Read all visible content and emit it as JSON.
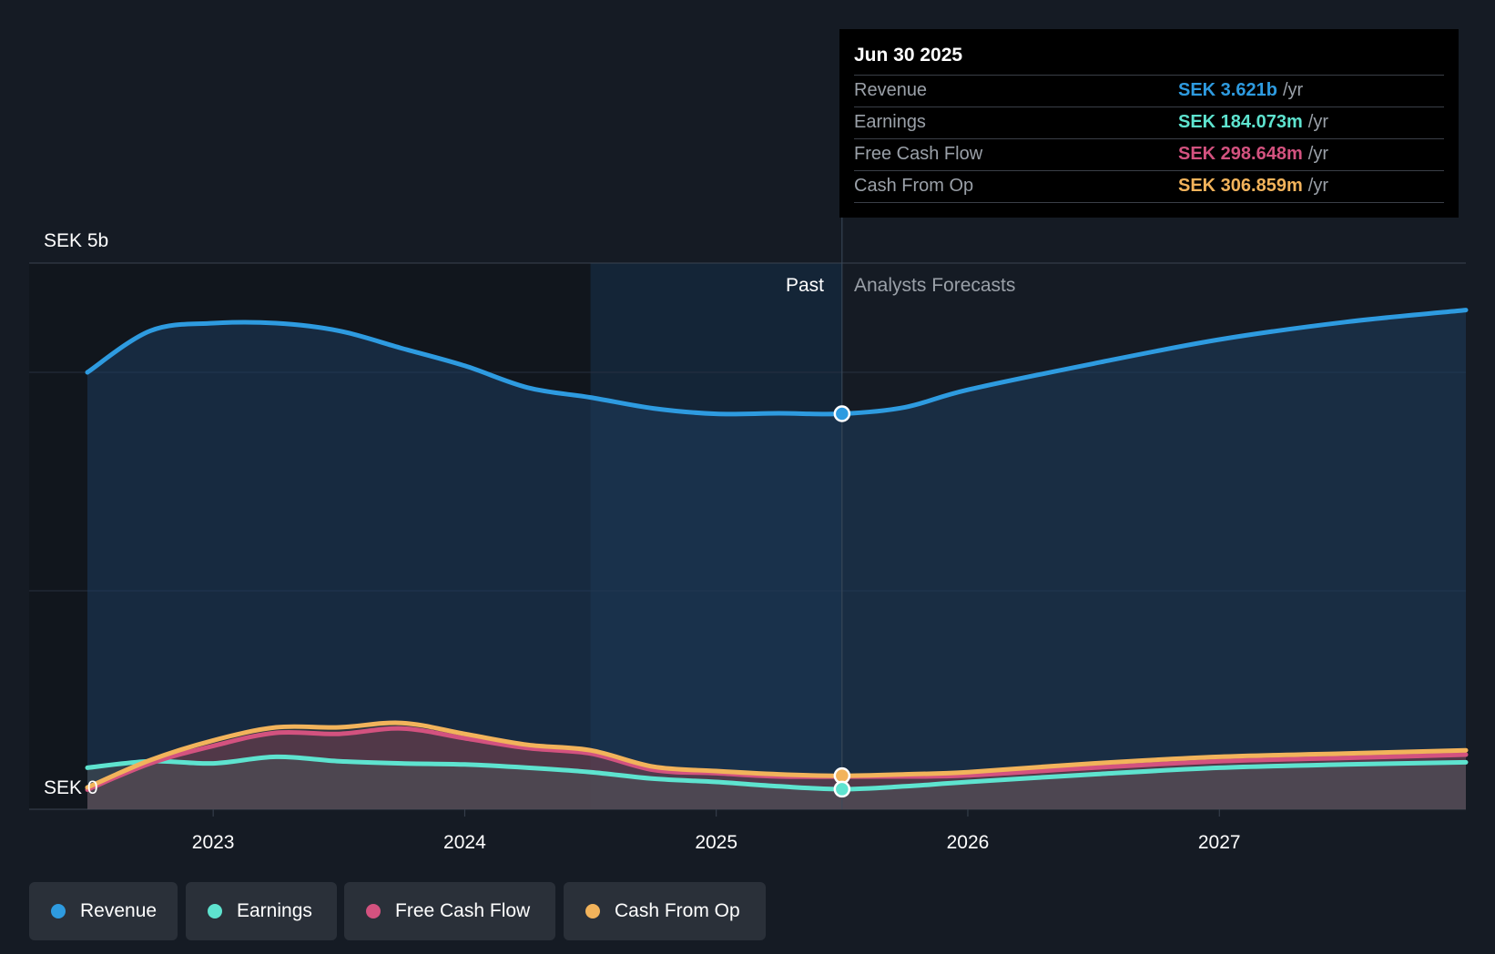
{
  "tooltip": {
    "date": "Jun 30 2025",
    "unit": "/yr",
    "rows": [
      {
        "label": "Revenue",
        "value": "SEK 3.621b"
      },
      {
        "label": "Earnings",
        "value": "SEK 184.073m"
      },
      {
        "label": "Free Cash Flow",
        "value": "SEK 298.648m"
      },
      {
        "label": "Cash From Op",
        "value": "SEK 306.859m"
      }
    ]
  },
  "legend": [
    "Revenue",
    "Earnings",
    "Free Cash Flow",
    "Cash From Op"
  ],
  "colors": {
    "revenue": "#2e9be0",
    "earnings": "#5ee3cf",
    "fcf": "#d3527f",
    "cfo": "#f2b35b",
    "background": "#151b24"
  },
  "chart_data": {
    "type": "area",
    "title": "",
    "ylabel_top": "SEK 5b",
    "ylabel_bottom": "SEK 0",
    "ylim": [
      0,
      5
    ],
    "unit": "SEK b",
    "xlim": [
      2022.5,
      2027.98
    ],
    "x_ticks": [
      2023,
      2024,
      2025,
      2026,
      2027
    ],
    "x_tick_labels": [
      "2023",
      "2024",
      "2025",
      "2026",
      "2027"
    ],
    "past_label": "Past",
    "forecast_label": "Analysts Forecasts",
    "divider_x": 2025.5,
    "shaded_start_x": 2024.5,
    "highlight_x": 2025.5,
    "series": [
      {
        "name": "Revenue",
        "key": "revenue",
        "x": [
          2022.5,
          2022.75,
          2023.0,
          2023.25,
          2023.5,
          2023.75,
          2024.0,
          2024.25,
          2024.5,
          2024.75,
          2025.0,
          2025.25,
          2025.5,
          2025.75,
          2026.0,
          2026.5,
          2027.0,
          2027.5,
          2027.98
        ],
        "values": [
          4.0,
          4.38,
          4.45,
          4.45,
          4.38,
          4.22,
          4.06,
          3.86,
          3.77,
          3.67,
          3.62,
          3.625,
          3.621,
          3.68,
          3.84,
          4.08,
          4.3,
          4.46,
          4.57
        ]
      },
      {
        "name": "Earnings",
        "key": "earnings",
        "x": [
          2022.5,
          2022.75,
          2023.0,
          2023.25,
          2023.5,
          2023.75,
          2024.0,
          2024.25,
          2024.5,
          2024.75,
          2025.0,
          2025.25,
          2025.5,
          2025.75,
          2026.0,
          2026.5,
          2027.0,
          2027.5,
          2027.98
        ],
        "values": [
          0.38,
          0.44,
          0.42,
          0.48,
          0.44,
          0.42,
          0.41,
          0.38,
          0.34,
          0.28,
          0.25,
          0.21,
          0.184,
          0.21,
          0.25,
          0.32,
          0.38,
          0.41,
          0.43
        ]
      },
      {
        "name": "Free Cash Flow",
        "key": "fcf",
        "x": [
          2022.5,
          2022.75,
          2023.0,
          2023.25,
          2023.5,
          2023.75,
          2024.0,
          2024.25,
          2024.5,
          2024.75,
          2025.0,
          2025.25,
          2025.5,
          2025.75,
          2026.0,
          2026.5,
          2027.0,
          2027.5,
          2027.98
        ],
        "values": [
          0.18,
          0.42,
          0.58,
          0.7,
          0.69,
          0.74,
          0.65,
          0.56,
          0.51,
          0.36,
          0.33,
          0.3,
          0.299,
          0.3,
          0.31,
          0.38,
          0.44,
          0.47,
          0.5
        ]
      },
      {
        "name": "Cash From Op",
        "key": "cfo",
        "x": [
          2022.5,
          2022.75,
          2023.0,
          2023.25,
          2023.5,
          2023.75,
          2024.0,
          2024.25,
          2024.5,
          2024.75,
          2025.0,
          2025.25,
          2025.5,
          2025.75,
          2026.0,
          2026.5,
          2027.0,
          2027.5,
          2027.98
        ],
        "values": [
          0.2,
          0.45,
          0.63,
          0.75,
          0.75,
          0.79,
          0.69,
          0.59,
          0.54,
          0.39,
          0.35,
          0.32,
          0.307,
          0.32,
          0.34,
          0.42,
          0.48,
          0.51,
          0.54
        ]
      }
    ]
  }
}
